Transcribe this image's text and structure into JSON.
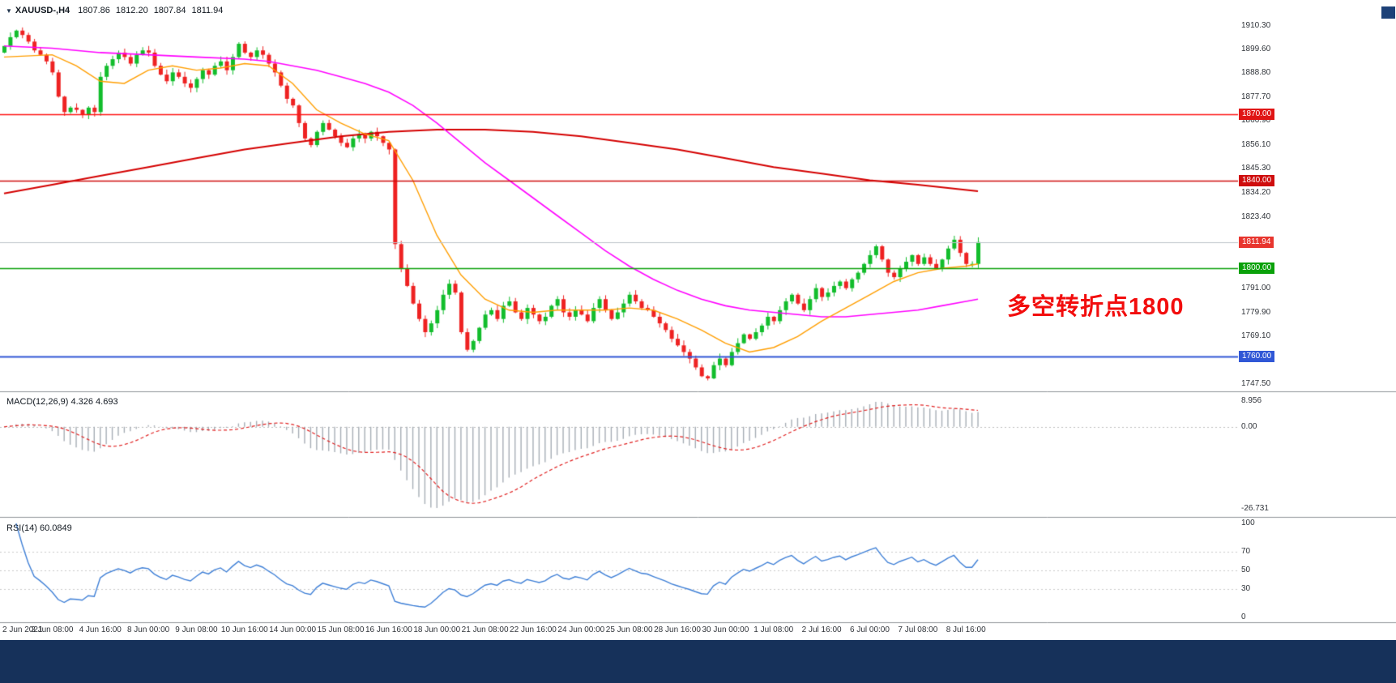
{
  "window": {
    "bg": "#ffffff",
    "bottom_bar_color": "#16315a",
    "corner_color": "#1d4178"
  },
  "header": {
    "dropdown_icon": "▼",
    "symbol": "XAUUSD-,H4",
    "open": "1807.86",
    "high": "1812.20",
    "low": "1807.84",
    "close": "1811.94"
  },
  "annotation": {
    "text": "多空转折点1800",
    "color": "#f20d0d"
  },
  "price_axis": {
    "labels": [
      "1910.30",
      "1899.60",
      "1888.80",
      "1877.70",
      "1866.90",
      "1856.10",
      "1845.30",
      "1834.20",
      "1823.40",
      "1791.00",
      "1779.90",
      "1769.10",
      "1758.30",
      "1747.50"
    ]
  },
  "levels": [
    {
      "price": 1870.0,
      "label": "1870.00",
      "line_color": "#ff1515",
      "tag_color": "#e01515",
      "width": 1.5
    },
    {
      "price": 1840.0,
      "label": "1840.00",
      "line_color": "#cf0d0d",
      "tag_color": "#cf0d0d",
      "width": 1.5
    },
    {
      "price": 1811.94,
      "label": "1811.94",
      "line_color": "#bcc3c9",
      "tag_color": "#e8352e",
      "width": 1
    },
    {
      "price": 1800.0,
      "label": "1800.00",
      "line_color": "#0aa10a",
      "tag_color": "#0aa10a",
      "width": 1.5
    },
    {
      "price": 1760.0,
      "label": "1760.00",
      "line_color": "#3057d6",
      "tag_color": "#3057d6",
      "width": 2
    }
  ],
  "chart_data": {
    "type": "candlestick",
    "title": "XAUUSD- H4",
    "timeframe": "H4",
    "last_bar_ohlc": {
      "open": 1807.86,
      "high": 1812.2,
      "low": 1807.84,
      "close": 1811.94
    },
    "ylim": [
      1745,
      1922
    ],
    "up_color": "#12bd2c",
    "down_color": "#ee2222",
    "open_first": 1898,
    "closes": [
      1901,
      1905,
      1908,
      1906,
      1903,
      1899,
      1897,
      1894,
      1889,
      1878,
      1871,
      1873,
      1872,
      1870,
      1873,
      1871,
      1887,
      1892,
      1895,
      1898,
      1896,
      1893,
      1897,
      1899,
      1898,
      1892,
      1888,
      1885,
      1889,
      1887,
      1884,
      1882,
      1886,
      1890,
      1888,
      1892,
      1894,
      1890,
      1896,
      1902,
      1898,
      1896,
      1899,
      1897,
      1893,
      1889,
      1883,
      1877,
      1874,
      1866,
      1859,
      1856,
      1862,
      1866,
      1863,
      1860,
      1857,
      1855,
      1859,
      1861,
      1859,
      1862,
      1860,
      1857,
      1854,
      1811,
      1800,
      1792,
      1784,
      1777,
      1771,
      1775,
      1781,
      1788,
      1793,
      1789,
      1771,
      1763,
      1767,
      1773,
      1779,
      1781,
      1777,
      1783,
      1785,
      1780,
      1777,
      1782,
      1779,
      1776,
      1778,
      1783,
      1786,
      1780,
      1778,
      1781,
      1779,
      1776,
      1782,
      1786,
      1781,
      1777,
      1780,
      1784,
      1788,
      1785,
      1782,
      1781,
      1778,
      1775,
      1772,
      1768,
      1765,
      1762,
      1759,
      1755,
      1751,
      1750,
      1756,
      1759,
      1756,
      1762,
      1766,
      1770,
      1768,
      1771,
      1774,
      1778,
      1776,
      1781,
      1785,
      1788,
      1784,
      1781,
      1786,
      1791,
      1787,
      1789,
      1792,
      1794,
      1791,
      1795,
      1798,
      1802,
      1806,
      1810,
      1804,
      1798,
      1796,
      1800,
      1803,
      1806,
      1802,
      1805,
      1802,
      1800,
      1804,
      1809,
      1813,
      1807,
      1802,
      1802,
      1811.94
    ],
    "x_label_step": 8,
    "x_labels": [
      "2 Jun 2021",
      "3 Jun 08:00",
      "4 Jun 16:00",
      "8 Jun 00:00",
      "9 Jun 08:00",
      "10 Jun 16:00",
      "14 Jun 00:00",
      "15 Jun 08:00",
      "16 Jun 16:00",
      "18 Jun 00:00",
      "21 Jun 08:00",
      "22 Jun 16:00",
      "24 Jun 00:00",
      "25 Jun 08:00",
      "28 Jun 16:00",
      "30 Jun 00:00",
      "1 Jul 08:00",
      "2 Jul 16:00",
      "6 Jul 00:00",
      "7 Jul 08:00",
      "8 Jul 16:00"
    ],
    "moving_averages": [
      {
        "name": "ma-fast-orange",
        "color": "#ff9e00",
        "width": 1.4,
        "points": [
          [
            0,
            1896
          ],
          [
            8,
            1897
          ],
          [
            12,
            1892
          ],
          [
            16,
            1885
          ],
          [
            20,
            1884
          ],
          [
            24,
            1890
          ],
          [
            28,
            1892
          ],
          [
            32,
            1890
          ],
          [
            36,
            1891
          ],
          [
            40,
            1893
          ],
          [
            44,
            1892
          ],
          [
            48,
            1884
          ],
          [
            52,
            1872
          ],
          [
            56,
            1866
          ],
          [
            60,
            1861
          ],
          [
            64,
            1858
          ],
          [
            68,
            1840
          ],
          [
            72,
            1815
          ],
          [
            76,
            1797
          ],
          [
            80,
            1786
          ],
          [
            84,
            1781
          ],
          [
            88,
            1780
          ],
          [
            92,
            1781
          ],
          [
            96,
            1781
          ],
          [
            100,
            1781
          ],
          [
            104,
            1782
          ],
          [
            108,
            1781
          ],
          [
            112,
            1777
          ],
          [
            116,
            1772
          ],
          [
            120,
            1766
          ],
          [
            124,
            1762
          ],
          [
            128,
            1764
          ],
          [
            132,
            1769
          ],
          [
            136,
            1776
          ],
          [
            140,
            1782
          ],
          [
            144,
            1788
          ],
          [
            148,
            1794
          ],
          [
            152,
            1798
          ],
          [
            156,
            1800
          ],
          [
            160,
            1801
          ],
          [
            162,
            1802
          ]
        ]
      },
      {
        "name": "ma-mid-magenta",
        "color": "#ff00ff",
        "width": 1.6,
        "points": [
          [
            0,
            1901
          ],
          [
            8,
            1900
          ],
          [
            16,
            1898
          ],
          [
            24,
            1897
          ],
          [
            32,
            1896
          ],
          [
            40,
            1895
          ],
          [
            44,
            1894
          ],
          [
            48,
            1892
          ],
          [
            52,
            1890
          ],
          [
            56,
            1887
          ],
          [
            60,
            1884
          ],
          [
            64,
            1880
          ],
          [
            68,
            1874
          ],
          [
            72,
            1866
          ],
          [
            76,
            1857
          ],
          [
            80,
            1848
          ],
          [
            84,
            1840
          ],
          [
            88,
            1832
          ],
          [
            92,
            1824
          ],
          [
            96,
            1816
          ],
          [
            100,
            1808
          ],
          [
            104,
            1801
          ],
          [
            108,
            1795
          ],
          [
            112,
            1790
          ],
          [
            116,
            1786
          ],
          [
            120,
            1783
          ],
          [
            124,
            1781
          ],
          [
            128,
            1780
          ],
          [
            132,
            1779
          ],
          [
            136,
            1778
          ],
          [
            140,
            1778
          ],
          [
            144,
            1779
          ],
          [
            148,
            1780
          ],
          [
            152,
            1781
          ],
          [
            156,
            1783
          ],
          [
            160,
            1785
          ],
          [
            162,
            1786
          ]
        ]
      },
      {
        "name": "ma-slow-red",
        "color": "#d40000",
        "width": 2,
        "points": [
          [
            0,
            1834
          ],
          [
            8,
            1838
          ],
          [
            16,
            1842
          ],
          [
            24,
            1846
          ],
          [
            32,
            1850
          ],
          [
            40,
            1854
          ],
          [
            48,
            1857
          ],
          [
            56,
            1860
          ],
          [
            64,
            1862
          ],
          [
            72,
            1863
          ],
          [
            80,
            1863
          ],
          [
            88,
            1862
          ],
          [
            96,
            1860
          ],
          [
            104,
            1857
          ],
          [
            112,
            1854
          ],
          [
            120,
            1850
          ],
          [
            128,
            1846
          ],
          [
            136,
            1843
          ],
          [
            144,
            1840
          ],
          [
            152,
            1838
          ],
          [
            162,
            1835
          ]
        ]
      }
    ],
    "indicators": {
      "macd": {
        "label": "MACD(12,26,9) 4.326 4.693",
        "fast": 12,
        "slow": 26,
        "signal": 9,
        "current_macd": 4.326,
        "current_signal": 4.693,
        "axis_labels": [
          "8.956",
          "0.00",
          "-26.731"
        ],
        "histogram_color": "#a6adb5",
        "signal_color": "#e02020"
      },
      "rsi": {
        "label": "RSI(14) 60.0849",
        "period": 14,
        "current": 60.0849,
        "axis_labels": [
          "100",
          "70",
          "50",
          "30",
          "0"
        ],
        "levels": [
          70,
          50,
          30
        ],
        "line_color": "#3e7fd6"
      }
    }
  },
  "time_axis": {
    "labels": [
      "2 Jun 2021",
      "3 Jun 08:00",
      "4 Jun 16:00",
      "8 Jun 00:00",
      "9 Jun 08:00",
      "10 Jun 16:00",
      "14 Jun 00:00",
      "15 Jun 08:00",
      "16 Jun 16:00",
      "18 Jun 00:00",
      "21 Jun 08:00",
      "22 Jun 16:00",
      "24 Jun 00:00",
      "25 Jun 08:00",
      "28 Jun 16:00",
      "30 Jun 00:00",
      "1 Jul 08:00",
      "2 Jul 16:00",
      "6 Jul 00:00",
      "7 Jul 08:00",
      "8 Jul 16:00"
    ]
  }
}
